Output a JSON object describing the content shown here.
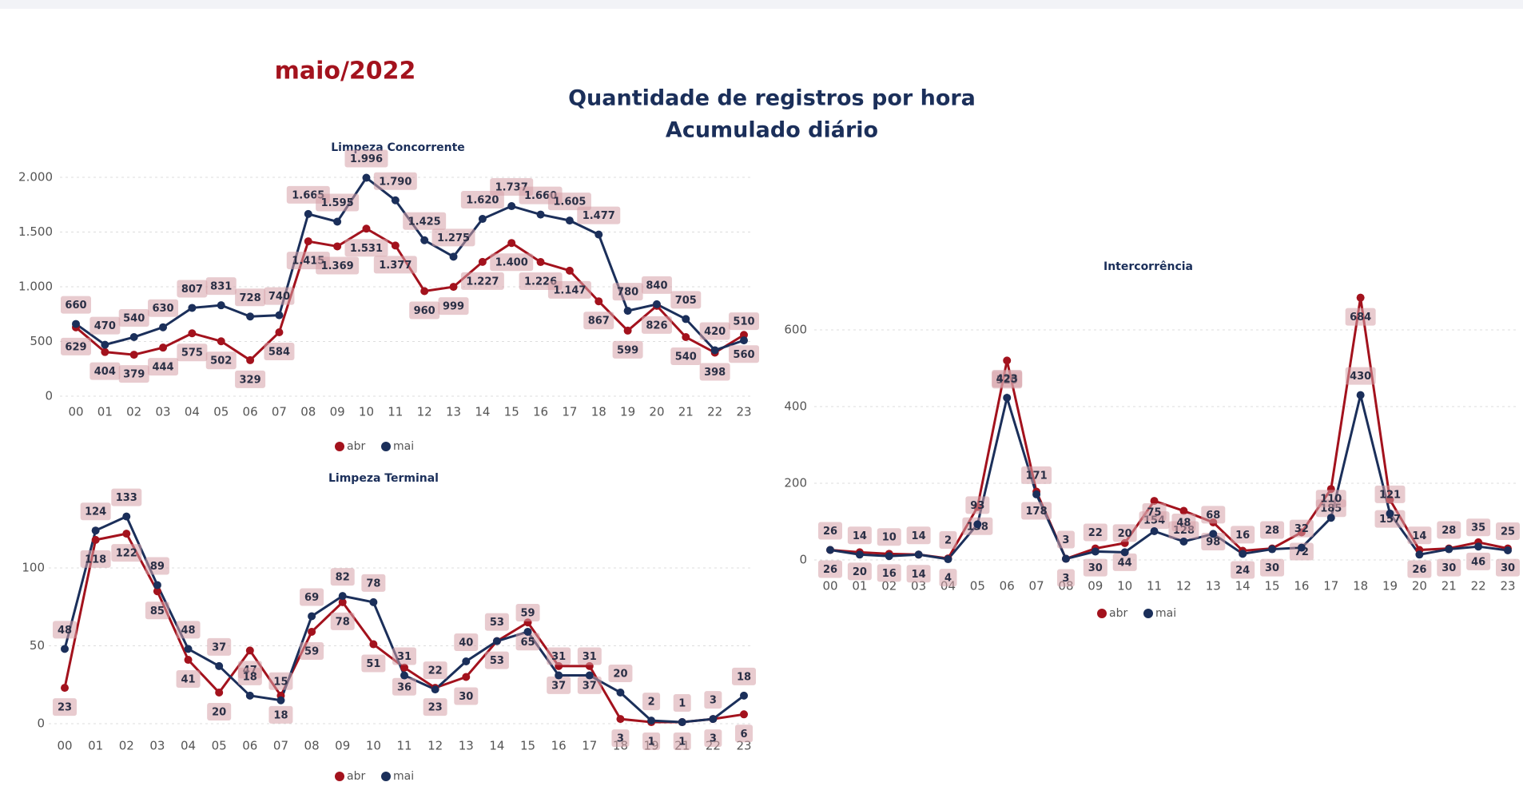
{
  "header": {
    "period": "maio/2022",
    "title_line1": "Quantidade de registros por hora",
    "title_line2": "Acumulado diário"
  },
  "chart_data": [
    {
      "type": "line",
      "title": "Limpeza Concorrente",
      "categories": [
        "00",
        "01",
        "02",
        "03",
        "04",
        "05",
        "06",
        "07",
        "08",
        "09",
        "10",
        "11",
        "12",
        "13",
        "14",
        "15",
        "16",
        "17",
        "18",
        "19",
        "20",
        "21",
        "22",
        "23"
      ],
      "series": [
        {
          "name": "abr",
          "color": "#a3121d",
          "values": [
            629,
            404,
            379,
            444,
            575,
            502,
            329,
            584,
            1415,
            1369,
            1531,
            1377,
            960,
            999,
            1227,
            1400,
            1226,
            1147,
            867,
            599,
            826,
            540,
            398,
            560
          ],
          "value_labels": [
            "629",
            "404",
            "379",
            "444",
            "575",
            "502",
            "329",
            "584",
            "1.415",
            "1.369",
            "1.531",
            "1.377",
            "960",
            "999",
            "1.227",
            "1.400",
            "1.226",
            "1.147",
            "867",
            "599",
            "826",
            "540",
            "398",
            "560"
          ]
        },
        {
          "name": "mai",
          "color": "#1b2f5a",
          "values": [
            660,
            470,
            540,
            630,
            807,
            831,
            728,
            740,
            1665,
            1595,
            1996,
            1790,
            1425,
            1275,
            1620,
            1737,
            1660,
            1605,
            1477,
            780,
            840,
            705,
            420,
            510
          ],
          "value_labels": [
            "660",
            "470",
            "540",
            "630",
            "807",
            "831",
            "728",
            "740",
            "1.665",
            "1.595",
            "1.996",
            "1.790",
            "1.425",
            "1.275",
            "1.620",
            "1.737",
            "1.660",
            "1.605",
            "1.477",
            "780",
            "840",
            "705",
            "420",
            "510"
          ]
        }
      ],
      "ylim": [
        0,
        2000
      ],
      "yticks": [
        0,
        500,
        {
          "value": 1000,
          "label": "1.000"
        },
        {
          "value": 1500,
          "label": "1.500"
        },
        {
          "value": 2000,
          "label": "2.000"
        }
      ],
      "grid": true
    },
    {
      "type": "line",
      "title": "Limpeza Terminal",
      "categories": [
        "00",
        "01",
        "02",
        "03",
        "04",
        "05",
        "06",
        "07",
        "08",
        "09",
        "10",
        "11",
        "12",
        "13",
        "14",
        "15",
        "16",
        "17",
        "18",
        "19",
        "21",
        "22",
        "23"
      ],
      "series": [
        {
          "name": "abr",
          "color": "#a3121d",
          "values": [
            23,
            118,
            122,
            85,
            41,
            20,
            47,
            18,
            59,
            78,
            51,
            36,
            23,
            30,
            53,
            65,
            37,
            37,
            3,
            1,
            1,
            3,
            6
          ]
        },
        {
          "name": "mai",
          "color": "#1b2f5a",
          "values": [
            48,
            124,
            133,
            89,
            48,
            37,
            18,
            15,
            69,
            82,
            78,
            31,
            22,
            40,
            53,
            59,
            31,
            31,
            20,
            2,
            1,
            3,
            18
          ]
        }
      ],
      "ylim": [
        0,
        140
      ],
      "yticks": [
        0,
        50,
        100
      ],
      "grid": true
    },
    {
      "type": "line",
      "title": "Intercorrência",
      "categories": [
        "00",
        "01",
        "02",
        "03",
        "04",
        "05",
        "06",
        "07",
        "08",
        "09",
        "10",
        "11",
        "12",
        "13",
        "14",
        "15",
        "16",
        "17",
        "18",
        "19",
        "20",
        "21",
        "22",
        "23"
      ],
      "series": [
        {
          "name": "abr",
          "color": "#a3121d",
          "values": [
            26,
            20,
            16,
            14,
            4,
            138,
            520,
            178,
            3,
            30,
            44,
            154,
            128,
            98,
            24,
            30,
            72,
            185,
            684,
            157,
            26,
            30,
            46,
            30
          ]
        },
        {
          "name": "mai",
          "color": "#1b2f5a",
          "values": [
            26,
            14,
            10,
            14,
            2,
            93,
            423,
            171,
            3,
            22,
            20,
            75,
            48,
            68,
            16,
            28,
            32,
            110,
            430,
            121,
            14,
            28,
            35,
            25
          ]
        }
      ],
      "ylim": [
        0,
        700
      ],
      "yticks": [
        0,
        200,
        400,
        600
      ],
      "grid": true
    }
  ]
}
